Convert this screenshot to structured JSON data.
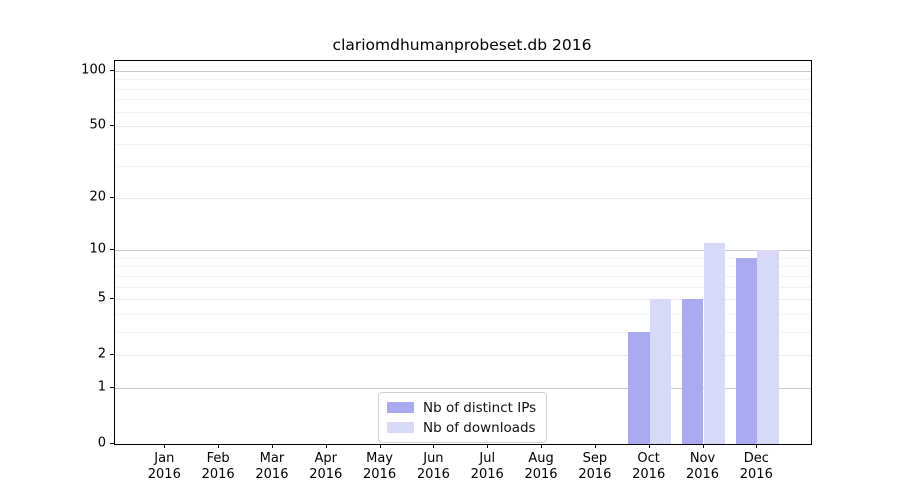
{
  "chart_data": {
    "type": "bar",
    "title": "clariomdhumanprobeset.db 2016",
    "year": "2016",
    "categories": [
      "Jan",
      "Feb",
      "Mar",
      "Apr",
      "May",
      "Jun",
      "Jul",
      "Aug",
      "Sep",
      "Oct",
      "Nov",
      "Dec"
    ],
    "series": [
      {
        "name": "Nb of distinct IPs",
        "color": "#aaaaf0",
        "values": [
          0,
          0,
          0,
          0,
          0,
          0,
          0,
          0,
          0,
          3,
          5,
          9
        ]
      },
      {
        "name": "Nb of downloads",
        "color": "#d8d8f8",
        "values": [
          0,
          0,
          0,
          0,
          0,
          0,
          0,
          0,
          0,
          5,
          11,
          10
        ]
      }
    ],
    "yscale": "log1p",
    "y_ticks": [
      0,
      1,
      2,
      5,
      10,
      20,
      50,
      100
    ],
    "y_major_ticks": [
      1,
      10,
      100
    ],
    "y_minor_ticks": [
      3,
      4,
      6,
      7,
      8,
      9,
      30,
      40,
      60,
      70,
      80,
      90
    ],
    "ylim": [
      0,
      113
    ],
    "grid": true,
    "legend_position": "lower center",
    "colors": {
      "major_grid": "#c9c9c9",
      "labeled_grid": "#e8e8e8",
      "minor_grid": "#f3f3f3",
      "axis": "#000000"
    }
  }
}
